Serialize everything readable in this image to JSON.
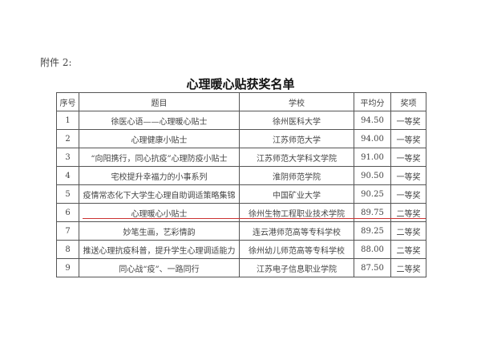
{
  "attachment_label": "附件 2:",
  "title": "心理暖心贴获奖名单",
  "headers": [
    "序号",
    "题目",
    "学校",
    "平均分",
    "奖项"
  ],
  "rows": [
    [
      "1",
      "徐医心语——心理暖心贴士",
      "徐州医科大学",
      "94.50",
      "一等奖"
    ],
    [
      "2",
      "心理健康小贴士",
      "江苏师范大学",
      "94.00",
      "一等奖"
    ],
    [
      "3",
      "“向阳携行，同心抗疫”心理防疫小贴士",
      "江苏师范大学科文学院",
      "91.00",
      "一等奖"
    ],
    [
      "4",
      "宅校提升幸福力的小事系列",
      "淮阴师范学院",
      "90.50",
      "一等奖"
    ],
    [
      "5",
      "疫情常态化下大学生心理自助调适策略集锦",
      "中国矿业大学",
      "90.25",
      "一等奖"
    ],
    [
      "6",
      "心理暖心小贴士",
      "徐州生物工程职业技术学院",
      "89.75",
      "二等奖"
    ],
    [
      "7",
      "妙笔生画，艺彩情韵",
      "连云港师范高等专科学校",
      "89.25",
      "二等奖"
    ],
    [
      "8",
      "推送心理抗疫科普，提升学生心理调适能力",
      "徐州幼儿师范高等专科学校",
      "88.00",
      "二等奖"
    ],
    [
      "9",
      "同心战“疫”、一路同行",
      "江苏电子信息职业学院",
      "87.50",
      "二等奖"
    ]
  ],
  "highlight_color": "#cc3333"
}
